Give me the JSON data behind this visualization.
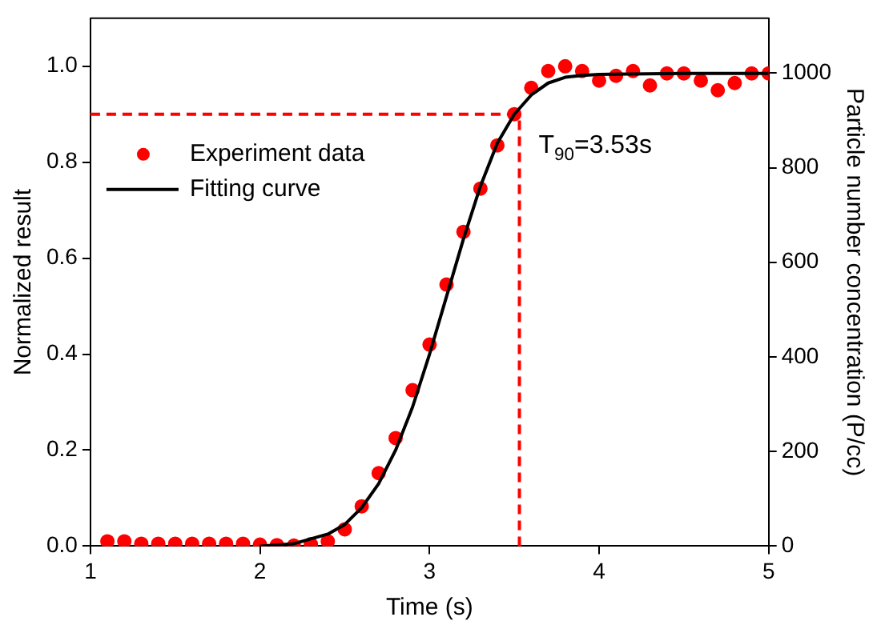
{
  "chart_data": {
    "type": "scatter",
    "xlabel": "Time (s)",
    "ylabel": "Normalized result",
    "y2label": "Particle number concentration (P/cc)",
    "xlim": [
      1,
      5
    ],
    "xticks": [
      1,
      2,
      3,
      4,
      5
    ],
    "ylim": [
      0,
      1.1
    ],
    "yticks": [
      {
        "value": 0,
        "label": "0.0"
      },
      {
        "value": 0.2,
        "label": "0.2"
      },
      {
        "value": 0.4,
        "label": "0.4"
      },
      {
        "value": 0.6,
        "label": "0.6"
      },
      {
        "value": 0.8,
        "label": "0.8"
      },
      {
        "value": 1,
        "label": "1.0"
      }
    ],
    "y2lim": [
      0,
      1116
    ],
    "y2ticks": [
      0,
      200,
      400,
      600,
      800,
      1000
    ],
    "grid": false,
    "legend": "top left",
    "series": [
      {
        "name": "Experiment data",
        "color": "#ff0000",
        "marker": "circle",
        "x": [
          1.1,
          1.2,
          1.3,
          1.4,
          1.5,
          1.6,
          1.7,
          1.8,
          1.9,
          2.0,
          2.1,
          2.2,
          2.3,
          2.4,
          2.5,
          2.6,
          2.7,
          2.8,
          2.9,
          3.0,
          3.1,
          3.2,
          3.3,
          3.4,
          3.5,
          3.6,
          3.7,
          3.8,
          3.9,
          4.0,
          4.1,
          4.2,
          4.3,
          4.4,
          4.5,
          4.6,
          4.7,
          4.8,
          4.9,
          5.0
        ],
        "values": [
          0.01,
          0.01,
          0.005,
          0.005,
          0.005,
          0.005,
          0.005,
          0.005,
          0.005,
          0.003,
          0.002,
          0.001,
          0.004,
          0.01,
          0.035,
          0.083,
          0.152,
          0.225,
          0.325,
          0.42,
          0.545,
          0.655,
          0.745,
          0.835,
          0.9,
          0.955,
          0.99,
          1.0,
          0.99,
          0.97,
          0.98,
          0.99,
          0.96,
          0.985,
          0.985,
          0.97,
          0.95,
          0.965,
          0.985,
          0.985
        ]
      },
      {
        "name": "Fitting curve",
        "type": "line",
        "color": "#000000",
        "marker": "none",
        "line_style": "solid",
        "x": [
          2.0,
          2.2,
          2.4,
          2.5,
          2.6,
          2.7,
          2.8,
          2.9,
          3.0,
          3.1,
          3.2,
          3.3,
          3.4,
          3.5,
          3.6,
          3.7,
          3.8,
          3.9,
          4.0,
          4.5,
          5.0
        ],
        "values": [
          0.0,
          0.005,
          0.025,
          0.045,
          0.08,
          0.13,
          0.2,
          0.29,
          0.4,
          0.52,
          0.64,
          0.75,
          0.84,
          0.9,
          0.94,
          0.965,
          0.977,
          0.981,
          0.983,
          0.985,
          0.985
        ]
      }
    ],
    "ref_lines": [
      {
        "axis": "x",
        "value": 3.53,
        "color": "#ff0000",
        "line_style": "dashed"
      },
      {
        "axis": "y",
        "value": 0.9,
        "color": "#ff0000",
        "line_style": "dashed"
      }
    ],
    "annotations": [
      {
        "text": "T$_{90}$=3.53s",
        "x": 3.53,
        "y": 0.82
      }
    ]
  }
}
